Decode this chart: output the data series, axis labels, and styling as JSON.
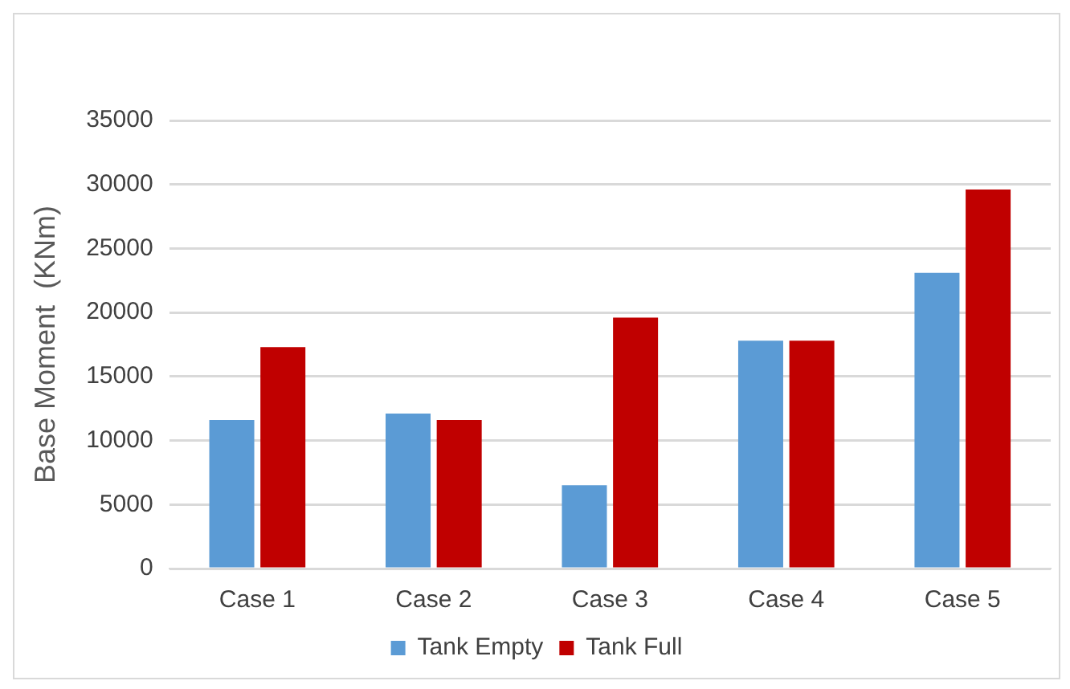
{
  "chart_data": {
    "type": "bar",
    "categories": [
      "Case 1",
      "Case 2",
      "Case 3",
      "Case 4",
      "Case 5"
    ],
    "series": [
      {
        "name": "Tank Empty",
        "color": "#5b9bd5",
        "values": [
          11600,
          12100,
          6500,
          17800,
          23100
        ]
      },
      {
        "name": "Tank Full",
        "color": "#c00000",
        "values": [
          17300,
          11600,
          19600,
          17800,
          29600
        ]
      }
    ],
    "ylabel": "Base Moment  (KNm)",
    "ylim": [
      0,
      35000
    ],
    "yticks": [
      0,
      5000,
      10000,
      15000,
      20000,
      25000,
      30000,
      35000
    ],
    "grid": "y",
    "legend": "bottom"
  }
}
